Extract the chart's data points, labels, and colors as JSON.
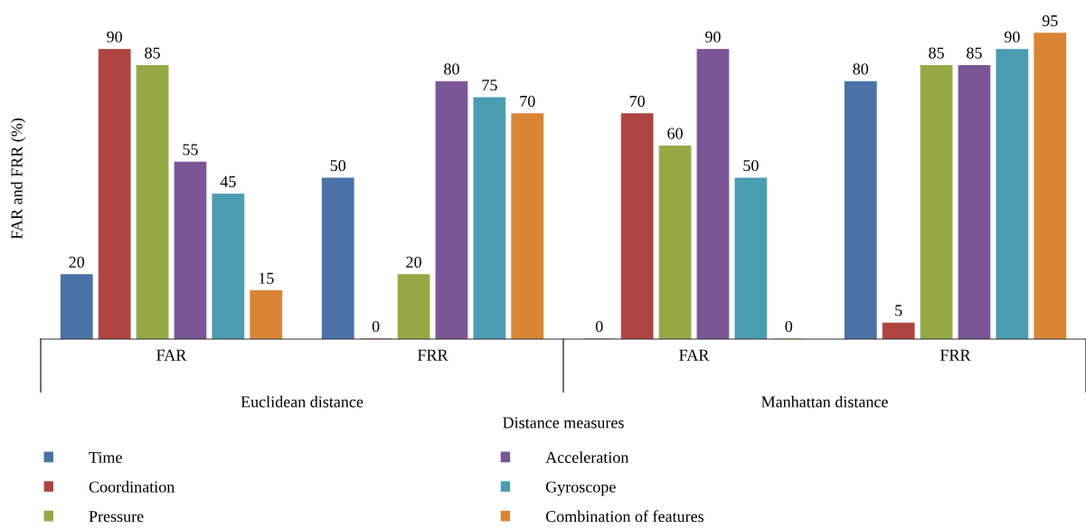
{
  "chart_data": {
    "type": "bar",
    "xlabel": "Distance measures",
    "ylabel": "FAR and FRR (%)",
    "categories": [
      "FAR",
      "FRR",
      "FAR",
      "FRR"
    ],
    "annotations": [
      "Euclidean distance",
      "Manhattan distance"
    ],
    "tick_labels": "x",
    "data_labels": true,
    "legend": "bottom",
    "grid": false,
    "series": [
      {
        "name": "Time",
        "color": "#4a72a8",
        "values": [
          20,
          50,
          0,
          80
        ]
      },
      {
        "name": "Coordination",
        "color": "#ae4440",
        "values": [
          90,
          0,
          70,
          5
        ]
      },
      {
        "name": "Pressure",
        "color": "#94a944",
        "values": [
          85,
          20,
          60,
          85
        ]
      },
      {
        "name": "Acceleration",
        "color": "#7b5595",
        "values": [
          55,
          80,
          90,
          85
        ]
      },
      {
        "name": "Gyroscope",
        "color": "#4b9db1",
        "values": [
          45,
          75,
          50,
          90
        ]
      },
      {
        "name": "Combination of features",
        "color": "#d98535",
        "values": [
          15,
          70,
          0,
          95
        ]
      }
    ]
  }
}
